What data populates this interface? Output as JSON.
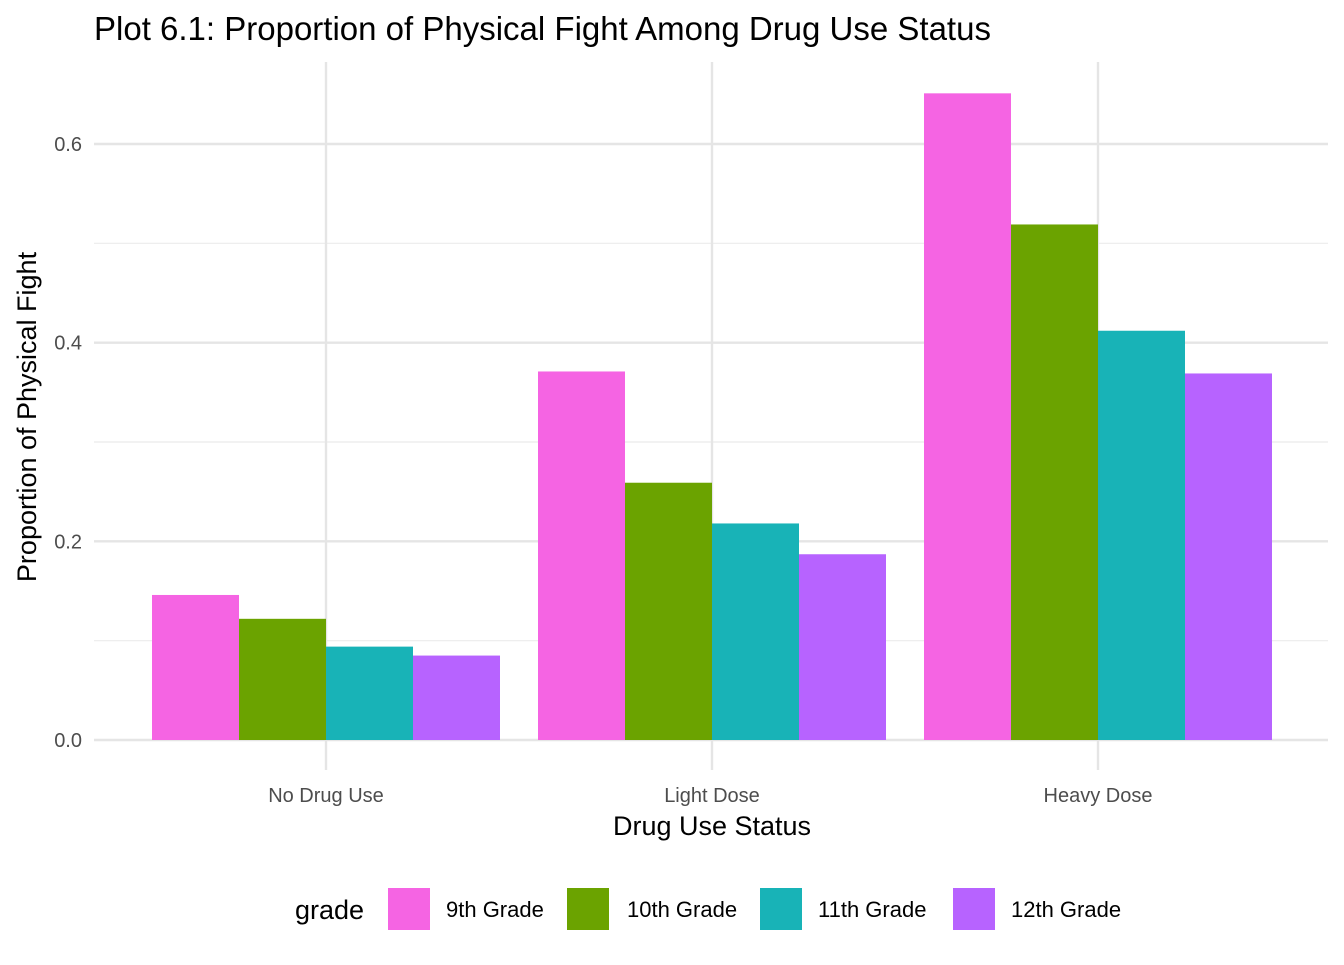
{
  "chart_data": {
    "type": "bar",
    "title": "Plot 6.1: Proportion of Physical Fight Among Drug Use Status",
    "xlabel": "Drug Use Status",
    "ylabel": "Proportion of Physical Fight",
    "categories": [
      "No Drug Use",
      "Light Dose",
      "Heavy Dose"
    ],
    "ylim": [
      0,
      0.68
    ],
    "y_ticks": [
      {
        "value": 0,
        "label": "0.0"
      },
      {
        "value": 0.2,
        "label": "0.2"
      },
      {
        "value": 0.4,
        "label": "0.4"
      },
      {
        "value": 0.6,
        "label": "0.6"
      }
    ],
    "y_minor_ticks": [
      0.1,
      0.3,
      0.5
    ],
    "grid": true,
    "legend_title": "grade",
    "legend_position": "bottom",
    "series": [
      {
        "name": "9th Grade",
        "color": "#F564E3",
        "values": [
          0.146,
          0.371,
          0.651
        ]
      },
      {
        "name": "10th Grade",
        "color": "#6BA300",
        "values": [
          0.122,
          0.259,
          0.519
        ]
      },
      {
        "name": "11th Grade",
        "color": "#18B3B7",
        "values": [
          0.094,
          0.218,
          0.412
        ]
      },
      {
        "name": "12th Grade",
        "color": "#B763FF",
        "values": [
          0.085,
          0.187,
          0.369
        ]
      }
    ]
  }
}
